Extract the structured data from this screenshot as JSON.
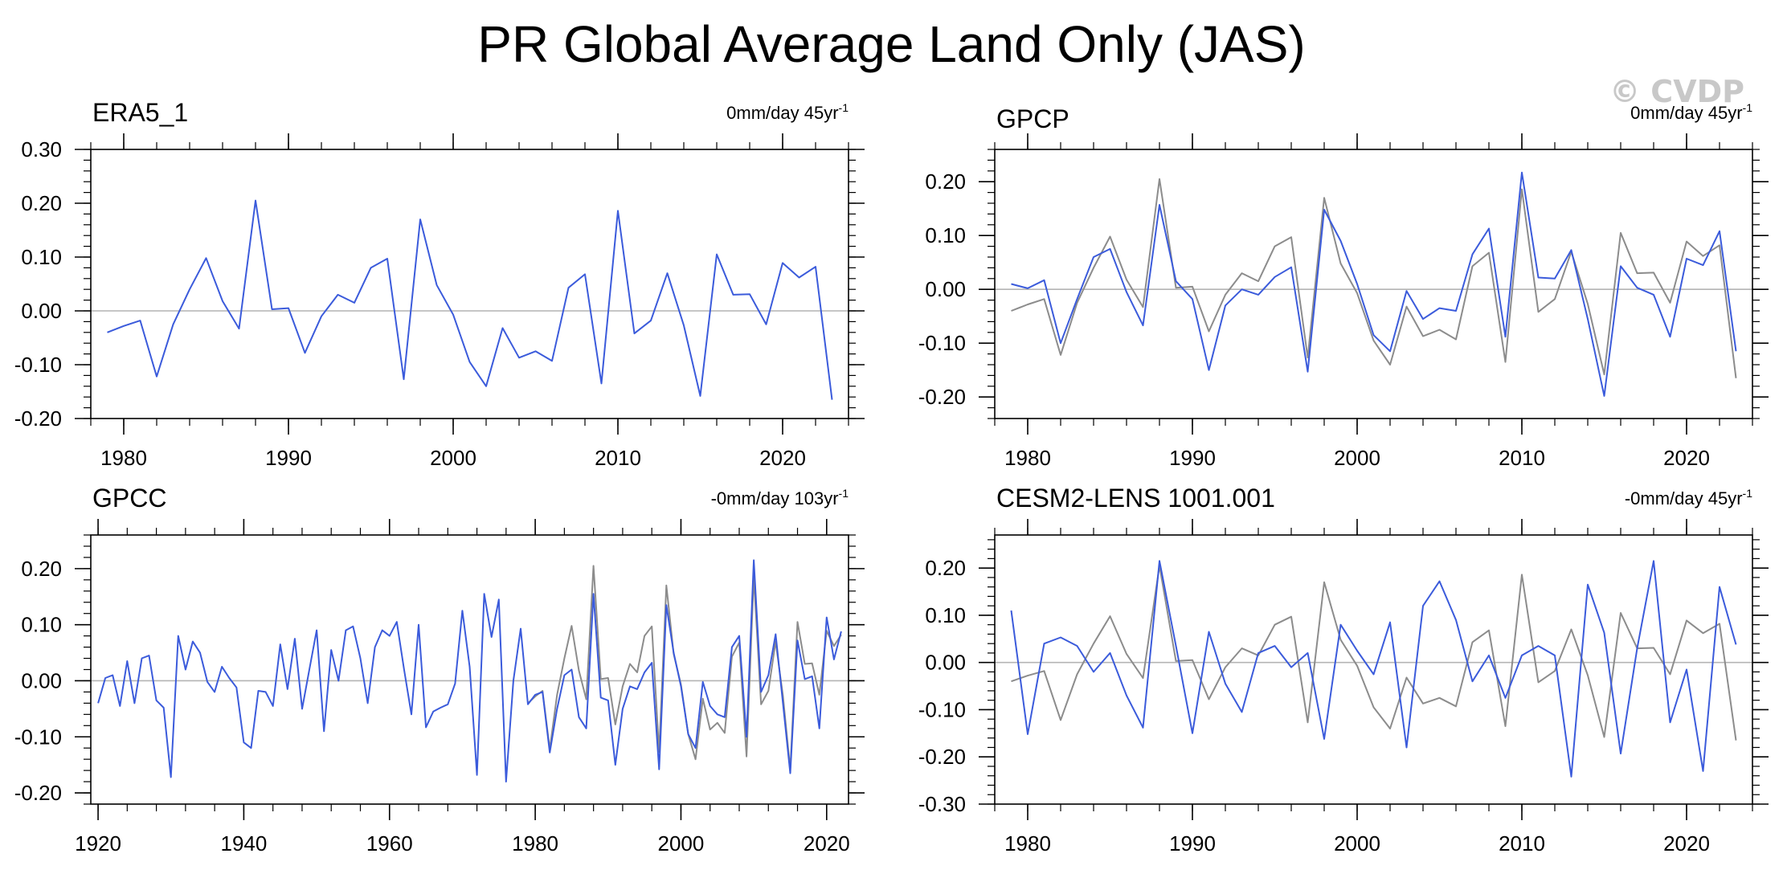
{
  "title": "PR Global Average Land Only (JAS)",
  "watermark": "© CVDP",
  "colors": {
    "model": "#3b5bdb",
    "observations": "#8c8c8c",
    "zero_line": "#b4b4b4",
    "axis": "#000000"
  },
  "chart_data": [
    {
      "type": "line",
      "title": "ERA5_1",
      "trend_label": "0mm/day 45yr",
      "trend_sup": "-1",
      "xlim": [
        1978,
        2024
      ],
      "ylim": [
        -0.2,
        0.3
      ],
      "yticks": [
        -0.2,
        -0.1,
        0.0,
        0.1,
        0.2,
        0.3
      ],
      "ytick_labels": [
        "-0.20",
        "-0.10",
        "0.00",
        "0.10",
        "0.20",
        "0.30"
      ],
      "xticks": [
        1980,
        1990,
        2000,
        2010,
        2020
      ],
      "xtick_labels": [
        "1980",
        "1990",
        "2000",
        "2010",
        "2020"
      ],
      "series": [
        {
          "name": "ERA5_1",
          "color": "#3b5bdb",
          "x_start": 1979,
          "values": [
            -0.04,
            -0.028,
            -0.018,
            -0.122,
            -0.025,
            0.04,
            0.098,
            0.018,
            -0.033,
            0.205,
            0.003,
            0.005,
            -0.078,
            -0.01,
            0.03,
            0.015,
            0.08,
            0.097,
            -0.127,
            0.17,
            0.048,
            -0.007,
            -0.095,
            -0.14,
            -0.032,
            -0.087,
            -0.075,
            -0.093,
            0.043,
            0.068,
            -0.135,
            0.186,
            -0.042,
            -0.018,
            0.07,
            -0.027,
            -0.158,
            0.105,
            0.03,
            0.031,
            -0.025,
            0.089,
            0.062,
            0.082,
            -0.165
          ]
        }
      ]
    },
    {
      "type": "line",
      "title": "GPCP",
      "trend_label": "0mm/day 45yr",
      "trend_sup": "-1",
      "xlim": [
        1978,
        2024
      ],
      "ylim": [
        -0.24,
        0.26
      ],
      "yticks": [
        -0.2,
        -0.1,
        0.0,
        0.1,
        0.2
      ],
      "ytick_labels": [
        "-0.20",
        "-0.10",
        "0.00",
        "0.10",
        "0.20"
      ],
      "xticks": [
        1980,
        1990,
        2000,
        2010,
        2020
      ],
      "xtick_labels": [
        "1980",
        "1990",
        "2000",
        "2010",
        "2020"
      ],
      "series": [
        {
          "name": "ERA5_1 (reference)",
          "color": "#8c8c8c",
          "x_start": 1979,
          "values": [
            -0.04,
            -0.028,
            -0.018,
            -0.122,
            -0.025,
            0.04,
            0.098,
            0.018,
            -0.033,
            0.205,
            0.003,
            0.005,
            -0.078,
            -0.01,
            0.03,
            0.015,
            0.08,
            0.097,
            -0.127,
            0.17,
            0.048,
            -0.007,
            -0.095,
            -0.14,
            -0.032,
            -0.087,
            -0.075,
            -0.093,
            0.043,
            0.068,
            -0.135,
            0.186,
            -0.042,
            -0.018,
            0.07,
            -0.027,
            -0.158,
            0.105,
            0.03,
            0.031,
            -0.025,
            0.089,
            0.062,
            0.082,
            -0.165
          ]
        },
        {
          "name": "GPCP",
          "color": "#3b5bdb",
          "x_start": 1979,
          "values": [
            0.01,
            0.002,
            0.017,
            -0.1,
            -0.018,
            0.06,
            0.075,
            -0.005,
            -0.067,
            0.157,
            0.015,
            -0.018,
            -0.15,
            -0.03,
            0.0,
            -0.01,
            0.023,
            0.041,
            -0.153,
            0.148,
            0.09,
            0.01,
            -0.085,
            -0.115,
            -0.003,
            -0.055,
            -0.035,
            -0.04,
            0.065,
            0.113,
            -0.088,
            0.217,
            0.022,
            0.02,
            0.073,
            -0.055,
            -0.198,
            0.043,
            0.003,
            -0.01,
            -0.088,
            0.057,
            0.045,
            0.108,
            -0.115
          ]
        }
      ]
    },
    {
      "type": "line",
      "title": "GPCC",
      "trend_label": "-0mm/day 103yr",
      "trend_sup": "-1",
      "xlim": [
        1919,
        2023
      ],
      "ylim": [
        -0.22,
        0.26
      ],
      "yticks": [
        -0.2,
        -0.1,
        0.0,
        0.1,
        0.2
      ],
      "ytick_labels": [
        "-0.20",
        "-0.10",
        "0.00",
        "0.10",
        "0.20"
      ],
      "xticks": [
        1920,
        1940,
        1960,
        1980,
        2000,
        2020
      ],
      "xtick_labels": [
        "1920",
        "1940",
        "1960",
        "1980",
        "2000",
        "2020"
      ],
      "series": [
        {
          "name": "ERA5_1 (reference)",
          "color": "#8c8c8c",
          "x_start": 1979,
          "values": [
            -0.04,
            -0.028,
            -0.018,
            -0.122,
            -0.025,
            0.04,
            0.098,
            0.018,
            -0.033,
            0.205,
            0.003,
            0.005,
            -0.078,
            -0.01,
            0.03,
            0.015,
            0.08,
            0.097,
            -0.127,
            0.17,
            0.048,
            -0.007,
            -0.095,
            -0.14,
            -0.032,
            -0.087,
            -0.075,
            -0.093,
            0.043,
            0.068,
            -0.135,
            0.186,
            -0.042,
            -0.018,
            0.07,
            -0.027,
            -0.158,
            0.105,
            0.03,
            0.031,
            -0.025,
            0.089,
            0.062,
            0.082
          ]
        },
        {
          "name": "GPCC",
          "color": "#3b5bdb",
          "x_start": 1920,
          "values": [
            -0.04,
            0.005,
            0.01,
            -0.045,
            0.035,
            -0.04,
            0.04,
            0.045,
            -0.035,
            -0.048,
            -0.172,
            0.08,
            0.02,
            0.07,
            0.05,
            -0.002,
            -0.02,
            0.025,
            0.005,
            -0.012,
            -0.11,
            -0.12,
            -0.018,
            -0.02,
            -0.045,
            0.065,
            -0.015,
            0.075,
            -0.05,
            0.02,
            0.09,
            -0.09,
            0.055,
            0.0,
            0.09,
            0.097,
            0.04,
            -0.04,
            0.06,
            0.09,
            0.08,
            0.105,
            0.02,
            -0.06,
            0.1,
            -0.083,
            -0.055,
            -0.048,
            -0.042,
            -0.005,
            0.125,
            0.025,
            -0.168,
            0.155,
            0.078,
            0.145,
            -0.18,
            0.0,
            0.093,
            -0.042,
            -0.025,
            -0.02,
            -0.128,
            -0.05,
            0.01,
            0.02,
            -0.065,
            -0.085,
            0.155,
            -0.03,
            -0.035,
            -0.15,
            -0.05,
            -0.01,
            -0.015,
            0.015,
            0.032,
            -0.158,
            0.135,
            0.05,
            -0.01,
            -0.095,
            -0.12,
            -0.002,
            -0.045,
            -0.06,
            -0.065,
            0.06,
            0.08,
            -0.1,
            0.215,
            -0.02,
            0.01,
            0.083,
            -0.04,
            -0.165,
            0.072,
            0.003,
            0.008,
            -0.085,
            0.113,
            0.038,
            0.088
          ]
        }
      ]
    },
    {
      "type": "line",
      "title": "CESM2-LENS 1001.001",
      "trend_label": "-0mm/day 45yr",
      "trend_sup": "-1",
      "xlim": [
        1978,
        2024
      ],
      "ylim": [
        -0.3,
        0.27
      ],
      "yticks": [
        -0.3,
        -0.2,
        -0.1,
        0.0,
        0.1,
        0.2
      ],
      "ytick_labels": [
        "-0.30",
        "-0.20",
        "-0.10",
        "0.00",
        "0.10",
        "0.20"
      ],
      "xticks": [
        1980,
        1990,
        2000,
        2010,
        2020
      ],
      "xtick_labels": [
        "1980",
        "1990",
        "2000",
        "2010",
        "2020"
      ],
      "series": [
        {
          "name": "ERA5_1 (reference)",
          "color": "#8c8c8c",
          "x_start": 1979,
          "values": [
            -0.04,
            -0.028,
            -0.018,
            -0.122,
            -0.025,
            0.04,
            0.098,
            0.018,
            -0.033,
            0.205,
            0.003,
            0.005,
            -0.078,
            -0.01,
            0.03,
            0.015,
            0.08,
            0.097,
            -0.127,
            0.17,
            0.048,
            -0.007,
            -0.095,
            -0.14,
            -0.032,
            -0.087,
            -0.075,
            -0.093,
            0.043,
            0.068,
            -0.135,
            0.186,
            -0.042,
            -0.018,
            0.07,
            -0.027,
            -0.158,
            0.105,
            0.03,
            0.031,
            -0.025,
            0.089,
            0.062,
            0.082,
            -0.165
          ]
        },
        {
          "name": "CESM2-LENS 1001.001",
          "color": "#3b5bdb",
          "x_start": 1979,
          "values": [
            0.11,
            -0.152,
            0.04,
            0.053,
            0.035,
            -0.02,
            0.02,
            -0.07,
            -0.138,
            0.215,
            0.035,
            -0.15,
            0.065,
            -0.045,
            -0.105,
            0.02,
            0.035,
            -0.01,
            0.02,
            -0.162,
            0.08,
            0.025,
            -0.025,
            0.085,
            -0.18,
            0.12,
            0.172,
            0.09,
            -0.04,
            0.015,
            -0.075,
            0.015,
            0.035,
            0.015,
            -0.242,
            0.165,
            0.063,
            -0.193,
            0.03,
            0.215,
            -0.127,
            -0.015,
            -0.23,
            0.16,
            0.038
          ]
        }
      ]
    }
  ]
}
